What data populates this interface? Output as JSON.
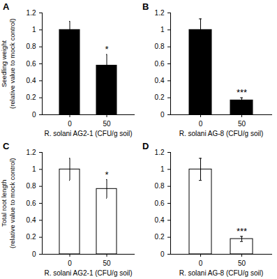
{
  "chart_data": [
    {
      "type": "bar",
      "panel": "A",
      "ylabel": [
        "Seedling weight",
        "(relative value to mock control)"
      ],
      "xlabel": "R. solani AG2-1 (CFU/g soil)",
      "categories": [
        "0",
        "50"
      ],
      "values": [
        1,
        0.58
      ],
      "errors": [
        0.1,
        0.13
      ],
      "significance": [
        null,
        "*"
      ],
      "color": "#000000",
      "ylim": [
        0,
        1.2
      ],
      "yticks": [
        0,
        0.2,
        0.4,
        0.6,
        0.8,
        1,
        1.2
      ]
    },
    {
      "type": "bar",
      "panel": "B",
      "xlabel": "R. solani AG-8 (CFU/g soil)",
      "categories": [
        "0",
        "50"
      ],
      "values": [
        1,
        0.17
      ],
      "errors": [
        0.13,
        0.03
      ],
      "significance": [
        null,
        "***"
      ],
      "color": "#000000",
      "ylim": [
        0,
        1.2
      ],
      "yticks": [
        0,
        0.2,
        0.4,
        0.6,
        0.8,
        1,
        1.2
      ]
    },
    {
      "type": "bar",
      "panel": "C",
      "ylabel": [
        "Total root length",
        "(relative value to mock control)"
      ],
      "xlabel": "R. solani AG2-1 (CFU/g soil)",
      "categories": [
        "0",
        "50"
      ],
      "values": [
        1,
        0.77
      ],
      "errors": [
        0.13,
        0.11
      ],
      "significance": [
        null,
        "*"
      ],
      "color": "#ffffff",
      "ylim": [
        0,
        1.2
      ],
      "yticks": [
        0,
        0.2,
        0.4,
        0.6,
        0.8,
        1,
        1.2
      ]
    },
    {
      "type": "bar",
      "panel": "D",
      "xlabel": "R. solani AG-8 (CFU/g soil)",
      "categories": [
        "0",
        "50"
      ],
      "values": [
        1,
        0.18
      ],
      "errors": [
        0.13,
        0.03
      ],
      "significance": [
        null,
        "***"
      ],
      "color": "#ffffff",
      "ylim": [
        0,
        1.2
      ],
      "yticks": [
        0,
        0.2,
        0.4,
        0.6,
        0.8,
        1,
        1.2
      ]
    }
  ]
}
